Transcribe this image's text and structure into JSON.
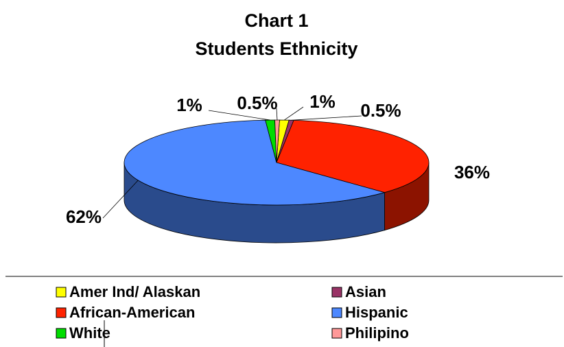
{
  "chart_data": {
    "type": "pie",
    "title": "Chart 1",
    "subtitle": "Students Ethnicity",
    "categories": [
      "Amer Ind/ Alaskan",
      "Asian",
      "African-American",
      "Hispanic",
      "White",
      "Philipino"
    ],
    "values": [
      1,
      0.5,
      36,
      62,
      1,
      0.5
    ],
    "value_labels": [
      "1%",
      "0.5%",
      "36%",
      "62%",
      "1%",
      "0.5%"
    ],
    "colors": [
      "#ffff00",
      "#993366",
      "#ff2200",
      "#4d88ff",
      "#00dd00",
      "#ff9999"
    ],
    "legend": "bottom"
  }
}
